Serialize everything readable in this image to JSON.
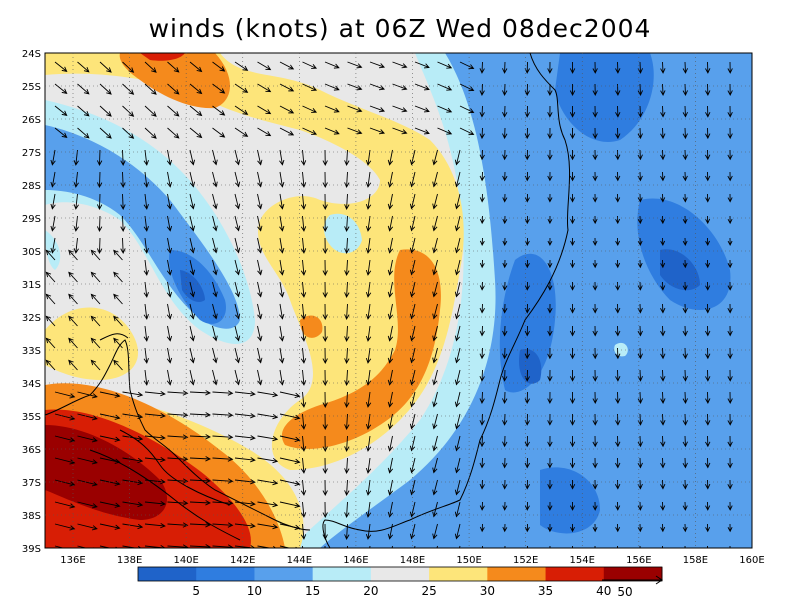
{
  "title": "winds (knots) at 06Z Wed 08dec2004",
  "lat_labels": [
    "24S",
    "25S",
    "26S",
    "27S",
    "28S",
    "29S",
    "30S",
    "31S",
    "32S",
    "33S",
    "34S",
    "35S",
    "36S",
    "37S",
    "38S",
    "39S"
  ],
  "lon_labels": [
    "136E",
    "138E",
    "140E",
    "142E",
    "144E",
    "146E",
    "148E",
    "150E",
    "152E",
    "154E",
    "156E",
    "158E",
    "160E"
  ],
  "colorbar": {
    "labels": [
      "5",
      "10",
      "15",
      "20",
      "25",
      "30",
      "35",
      "40"
    ],
    "colors": [
      "#1f63c9",
      "#2f7de0",
      "#58a0ec",
      "#b8ecf7",
      "#e8e8e8",
      "#fde57a",
      "#f58a1c",
      "#d81e05",
      "#9a0000"
    ]
  },
  "reference_vector_label": "50",
  "colors": {
    "land_outline": "#000000",
    "grid": "#555555"
  }
}
